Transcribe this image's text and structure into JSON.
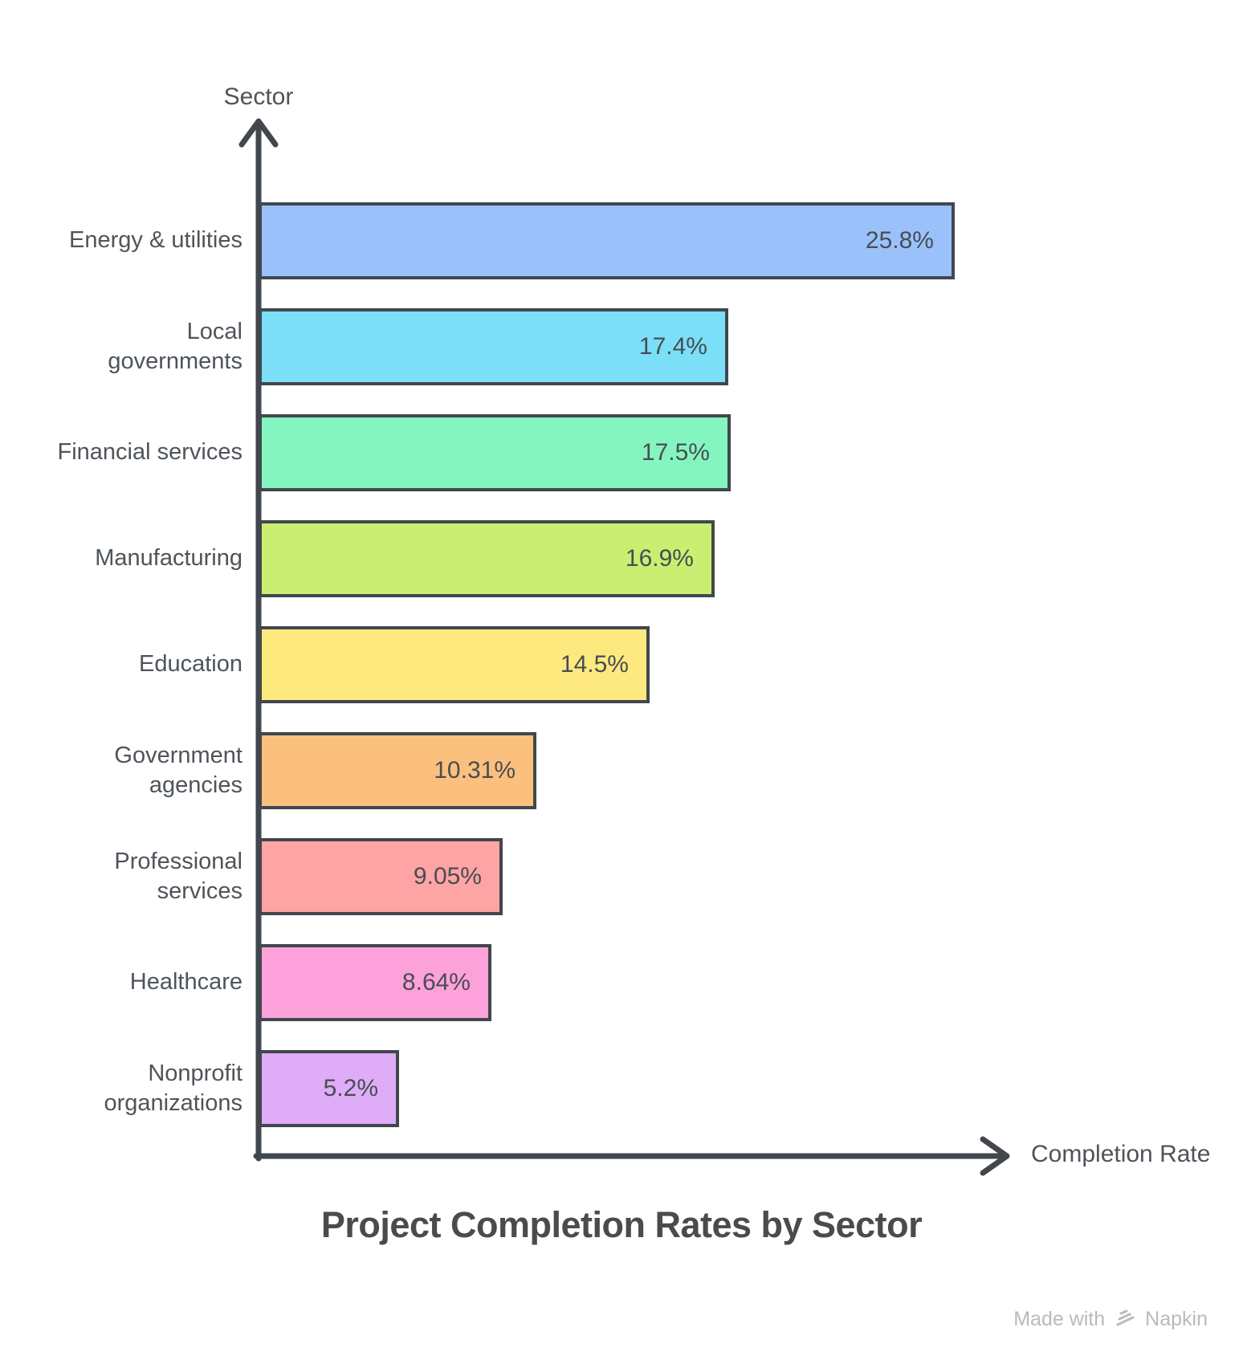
{
  "page": {
    "background": "#ffffff"
  },
  "y_axis_label": "Sector",
  "x_axis_label": "Completion Rate",
  "title": "Project Completion Rates by Sector",
  "footer": {
    "made_with": "Made with",
    "brand": "Napkin"
  },
  "colors": {
    "axis": "#41474d",
    "label_text": "#4e545a",
    "value_text": "#474d53",
    "title_text": "#4b4b4b",
    "footer_text": "#b9babc"
  },
  "chart_data": {
    "type": "bar",
    "orientation": "horizontal",
    "title": "Project Completion Rates by Sector",
    "xlabel": "Completion Rate",
    "ylabel": "Sector",
    "grid": false,
    "legend": false,
    "xlim": [
      0,
      27.7
    ],
    "categories": [
      "Energy & utilities",
      "Local\ngovernments",
      "Financial services",
      "Manufacturing",
      "Education",
      "Government\nagencies",
      "Professional\nservices",
      "Healthcare",
      "Nonprofit\norganizations"
    ],
    "values": [
      25.8,
      17.4,
      17.5,
      16.9,
      14.5,
      10.31,
      9.05,
      8.64,
      5.2
    ],
    "value_labels": [
      "25.8%",
      "17.4%",
      "17.5%",
      "16.9%",
      "14.5%",
      "10.31%",
      "9.05%",
      "8.64%",
      "5.2%"
    ],
    "bar_colors": [
      "#9BC1FB",
      "#7BDFF8",
      "#84F5BF",
      "#C9EE72",
      "#FDE97E",
      "#FCC07E",
      "#FFA4A4",
      "#FDA1DB",
      "#DFACF7"
    ],
    "bar_border_color": "#41474d"
  }
}
